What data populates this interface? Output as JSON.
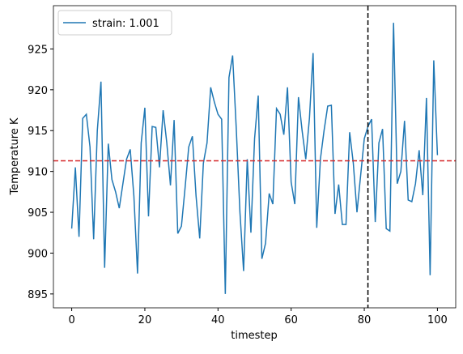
{
  "chart_data": {
    "type": "line",
    "xlabel": "timestep",
    "ylabel": "Temperature K",
    "x": [
      0,
      1,
      2,
      3,
      4,
      5,
      6,
      7,
      8,
      9,
      10,
      11,
      12,
      13,
      14,
      15,
      16,
      17,
      18,
      19,
      20,
      21,
      22,
      23,
      24,
      25,
      26,
      27,
      28,
      29,
      30,
      31,
      32,
      33,
      34,
      35,
      36,
      37,
      38,
      39,
      40,
      41,
      42,
      43,
      44,
      45,
      46,
      47,
      48,
      49,
      50,
      51,
      52,
      53,
      54,
      55,
      56,
      57,
      58,
      59,
      60,
      61,
      62,
      63,
      64,
      65,
      66,
      67,
      68,
      69,
      70,
      71,
      72,
      73,
      74,
      75,
      76,
      77,
      78,
      79,
      80,
      81,
      82,
      83,
      84,
      85,
      86,
      87,
      88,
      89,
      90,
      91,
      92,
      93,
      94,
      95,
      96,
      97,
      98,
      99,
      100
    ],
    "series": [
      {
        "name": "strain: 1.001",
        "color": "#1f77b4",
        "values": [
          903,
          910.5,
          902,
          916.5,
          917,
          913,
          901.7,
          915,
          921,
          898.2,
          913.4,
          909,
          907.5,
          905.5,
          908.5,
          911.5,
          912.7,
          907,
          897.5,
          913.5,
          917.8,
          904.5,
          915.5,
          915.4,
          910.5,
          917.5,
          913.5,
          908.3,
          916.3,
          902.4,
          903.3,
          908,
          913,
          914.3,
          907,
          901.8,
          911,
          913.5,
          920.3,
          918.5,
          917,
          916.4,
          895,
          921.5,
          924.2,
          915.2,
          905,
          897.8,
          911.5,
          902.5,
          914,
          919.3,
          899.3,
          901.2,
          907.3,
          906,
          917.7,
          917,
          914.5,
          920.3,
          908.7,
          906,
          919.1,
          915,
          911.5,
          916.5,
          924.5,
          903.1,
          911.5,
          915,
          918,
          918.1,
          904.8,
          908.4,
          903.5,
          903.5,
          914.8,
          911,
          905,
          909.5,
          914,
          915.5,
          916.4,
          903.8,
          913.5,
          915.2,
          903,
          902.7,
          928.2,
          908.5,
          910,
          916.2,
          906.5,
          906.3,
          908.5,
          912.6,
          907.1,
          919,
          897.3,
          923.6,
          912
        ]
      }
    ],
    "hline": {
      "value": 911.3,
      "color": "#d62728"
    },
    "vline": {
      "value": 81,
      "color": "#000000"
    },
    "xlim": [
      -5,
      105
    ],
    "xticks": [
      0,
      20,
      40,
      60,
      80,
      100
    ],
    "ylim": [
      893.3,
      930.3
    ],
    "yticks": [
      895,
      900,
      905,
      910,
      915,
      920,
      925
    ],
    "legend": "upper left"
  }
}
